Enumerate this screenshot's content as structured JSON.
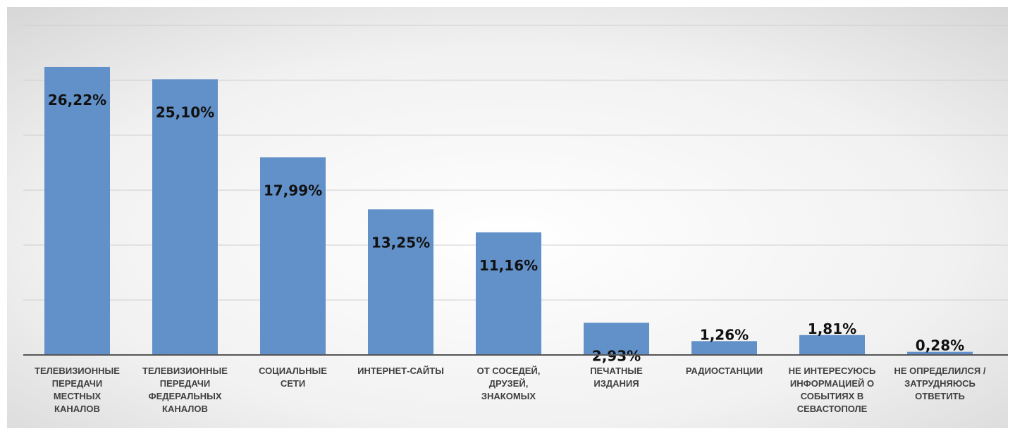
{
  "chart_data": {
    "type": "bar",
    "title": "",
    "xlabel": "",
    "ylabel": "",
    "ylim": [
      0,
      30
    ],
    "grid": true,
    "legend": "none",
    "colors": {
      "bar": "#6291c9",
      "label": "#111111",
      "axis": "#555555",
      "grid": "#cfcfcf"
    },
    "categories": [
      "ТЕЛЕВИЗИОННЫЕ ПЕРЕДАЧИ МЕСТНЫХ КАНАЛОВ",
      "ТЕЛЕВИЗИОННЫЕ ПЕРЕДАЧИ ФЕДЕРАЛЬНЫХ КАНАЛОВ",
      "СОЦИАЛЬНЫЕ СЕТИ",
      "ИНТЕРНЕТ-САЙТЫ",
      "ОТ СОСЕДЕЙ, ДРУЗЕЙ, ЗНАКОМЫХ",
      "ПЕЧАТНЫЕ ИЗДАНИЯ",
      "РАДИОСТАНЦИИ",
      "НЕ ИНТЕРЕСУЮСЬ ИНФОРМАЦИЕЙ О СОБЫТИЯХ В СЕВАСТОПОЛЕ",
      "НЕ ОПРЕДЕЛИЛСЯ / ЗАТРУДНЯЮСЬ ОТВЕТИТЬ"
    ],
    "category_lines": [
      [
        "ТЕЛЕВИЗИОННЫЕ",
        "ПЕРЕДАЧИ",
        "МЕСТНЫХ",
        "КАНАЛОВ"
      ],
      [
        "ТЕЛЕВИЗИОННЫЕ",
        "ПЕРЕДАЧИ",
        "ФЕДЕРАЛЬНЫХ",
        "КАНАЛОВ"
      ],
      [
        "СОЦИАЛЬНЫЕ",
        "СЕТИ"
      ],
      [
        "ИНТЕРНЕТ-САЙТЫ"
      ],
      [
        "ОТ СОСЕДЕЙ,",
        "ДРУЗЕЙ,",
        "ЗНАКОМЫХ"
      ],
      [
        "ПЕЧАТНЫЕ",
        "ИЗДАНИЯ"
      ],
      [
        "РАДИОСТАНЦИИ"
      ],
      [
        "НЕ ИНТЕРЕСУЮСЬ",
        "ИНФОРМАЦИЕЙ О",
        "СОБЫТИЯХ В",
        "СЕВАСТОПОЛЕ"
      ],
      [
        "НЕ ОПРЕДЕЛИЛСЯ /",
        "ЗАТРУДНЯЮСЬ",
        "ОТВЕТИТЬ"
      ]
    ],
    "values": [
      26.22,
      25.1,
      17.99,
      13.25,
      11.16,
      2.93,
      1.26,
      1.81,
      0.28
    ],
    "data_labels": [
      "26,22%",
      "25,10%",
      "17,99%",
      "13,25%",
      "11,16%",
      "2,93%",
      "1,26%",
      "1,81%",
      "0,28%"
    ]
  }
}
